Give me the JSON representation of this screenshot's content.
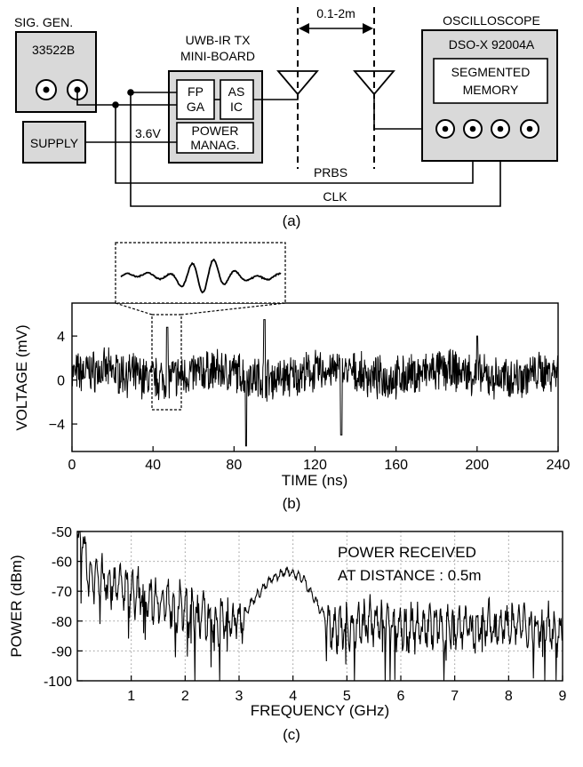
{
  "panel_a": {
    "caption": "(a)",
    "sig_gen_title": "SIG. GEN.",
    "sig_gen_model": "33522B",
    "supply": "SUPPLY",
    "voltage": "3.6V",
    "tx_title_line1": "UWB-IR TX",
    "tx_title_line2": "MINI-BOARD",
    "fpga_line1": "FP",
    "fpga_line2": "GA",
    "asic_line1": "AS",
    "asic_line2": "IC",
    "power_line1": "POWER",
    "power_line2": "MANAG.",
    "distance": "0.1-2m",
    "osc_title": "OSCILLOSCOPE",
    "osc_model": "DSO-X 92004A",
    "segmem_line1": "SEGMENTED",
    "segmem_line2": "MEMORY",
    "prbs": "PRBS",
    "clk": "CLK",
    "colors": {
      "fill": "#d9d9d9",
      "line": "#000000"
    }
  },
  "chart_data": [
    {
      "type": "line",
      "panel_caption": "(b)",
      "xlabel": "TIME (ns)",
      "ylabel": "VOLTAGE (mV)",
      "xlim": [
        0,
        240
      ],
      "ylim": [
        -6.5,
        7
      ],
      "xticks": [
        0,
        40,
        80,
        120,
        160,
        200,
        240
      ],
      "yticks": [
        4,
        0,
        -4
      ],
      "ytick_labels": [
        "4",
        "0",
        "−4"
      ],
      "grid": false,
      "description_points": {
        "x": [
          0,
          10,
          20,
          30,
          40,
          45,
          47,
          50,
          60,
          70,
          86,
          95,
          100,
          110,
          120,
          133,
          140,
          160,
          180,
          200,
          220,
          240
        ],
        "y": [
          0.5,
          0.8,
          0.3,
          0.6,
          1.5,
          -1.5,
          4.8,
          -0.5,
          0.5,
          0.3,
          -6.0,
          5.5,
          -0.3,
          0.2,
          0.4,
          -5.0,
          0.2,
          0.5,
          0.7,
          4.0,
          0.3,
          0.1
        ]
      },
      "inset_zoom": {
        "x_range": [
          40,
          53
        ],
        "y_range": [
          -3.5,
          5.5
        ]
      }
    },
    {
      "type": "line",
      "panel_caption": "(c)",
      "xlabel": "FREQUENCY (GHz)",
      "ylabel": "POWER (dBm)",
      "xlim": [
        0,
        9
      ],
      "ylim": [
        -100,
        -50
      ],
      "xticks": [
        1,
        2,
        3,
        4,
        5,
        6,
        7,
        8,
        9
      ],
      "yticks": [
        -50,
        -60,
        -70,
        -80,
        -90,
        -100
      ],
      "grid": true,
      "annotation_line1": "POWER RECEIVED",
      "annotation_line2": "AT DISTANCE : 0.5m",
      "envelope": {
        "x": [
          0.0,
          0.1,
          0.2,
          0.5,
          1.0,
          1.5,
          2.0,
          2.5,
          3.0,
          3.3,
          3.6,
          3.9,
          4.2,
          4.5,
          4.8,
          5.5,
          6.0,
          7.0,
          8.0,
          9.0
        ],
        "y": [
          -55,
          -51,
          -65,
          -66,
          -70,
          -73,
          -76,
          -80,
          -80,
          -72,
          -66,
          -63,
          -66,
          -76,
          -83,
          -80,
          -82,
          -82,
          -81,
          -83
        ]
      }
    }
  ]
}
